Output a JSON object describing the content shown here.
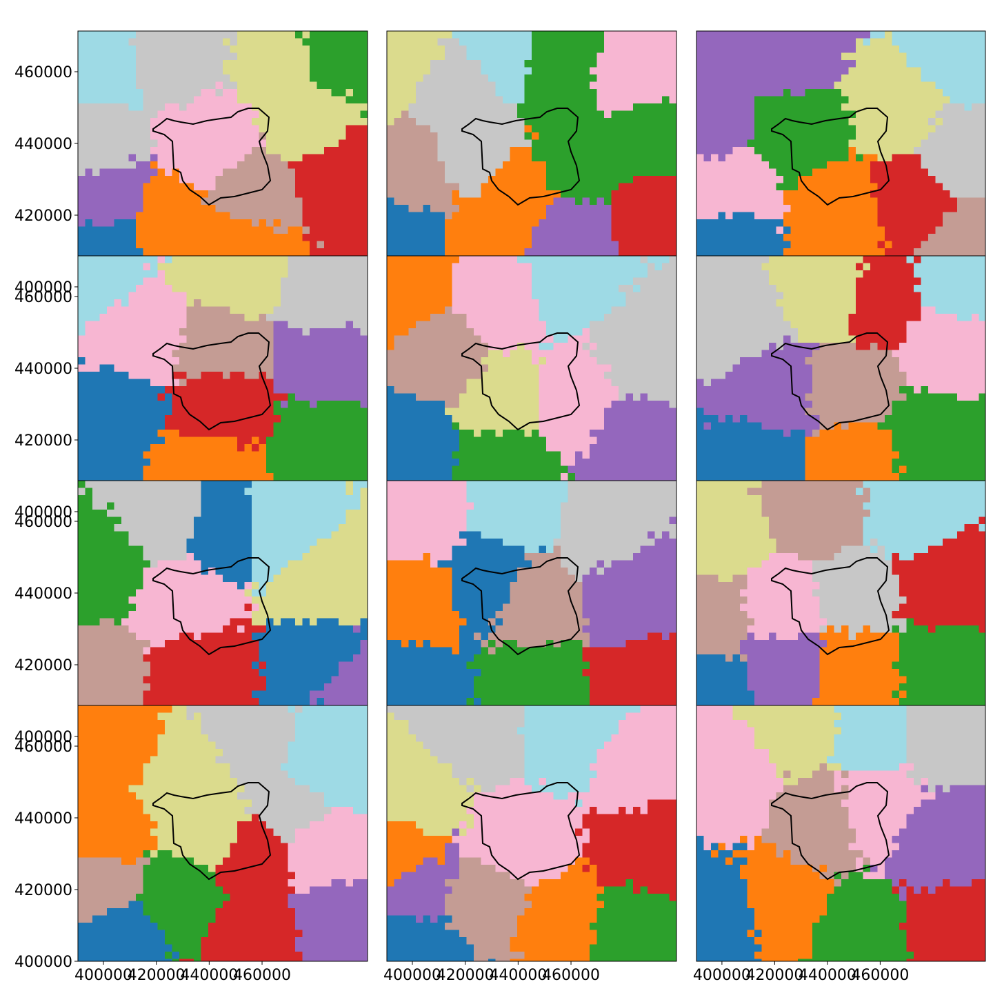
{
  "chart_data": [
    {
      "type": "map",
      "xlim": [
        390350,
        499900
      ],
      "ylim": [
        408650,
        471350
      ],
      "yticks": [
        400000,
        420000,
        440000,
        460000
      ]
    },
    {
      "type": "map",
      "xlim": [
        390350,
        499900
      ],
      "ylim": [
        408650,
        471350
      ]
    },
    {
      "type": "map",
      "xlim": [
        390350,
        499900
      ],
      "ylim": [
        408650,
        471350
      ]
    },
    {
      "type": "map",
      "xlim": [
        390350,
        499900
      ],
      "ylim": [
        408650,
        471350
      ],
      "yticks": [
        400000,
        420000,
        440000,
        460000
      ]
    },
    {
      "type": "map",
      "xlim": [
        390350,
        499900
      ],
      "ylim": [
        408650,
        471350
      ]
    },
    {
      "type": "map",
      "xlim": [
        390350,
        499900
      ],
      "ylim": [
        408650,
        471350
      ]
    },
    {
      "type": "map",
      "xlim": [
        390350,
        499900
      ],
      "ylim": [
        408650,
        471350
      ],
      "yticks": [
        400000,
        420000,
        440000,
        460000
      ]
    },
    {
      "type": "map",
      "xlim": [
        390350,
        499900
      ],
      "ylim": [
        408650,
        471350
      ]
    },
    {
      "type": "map",
      "xlim": [
        390350,
        499900
      ],
      "ylim": [
        408650,
        471350
      ]
    },
    {
      "type": "map",
      "xlim": [
        390350,
        499900
      ],
      "ylim": [
        400000,
        471350
      ],
      "yticks": [
        400000,
        420000,
        440000,
        460000
      ],
      "xticks": [
        400000,
        420000,
        440000,
        460000
      ]
    },
    {
      "type": "map",
      "xlim": [
        390350,
        499900
      ],
      "ylim": [
        400000,
        471350
      ],
      "xticks": [
        400000,
        420000,
        440000,
        460000
      ]
    },
    {
      "type": "map",
      "xlim": [
        390350,
        499900
      ],
      "ylim": [
        400000,
        471350
      ],
      "xticks": [
        400000,
        420000,
        440000,
        460000
      ]
    }
  ]
}
